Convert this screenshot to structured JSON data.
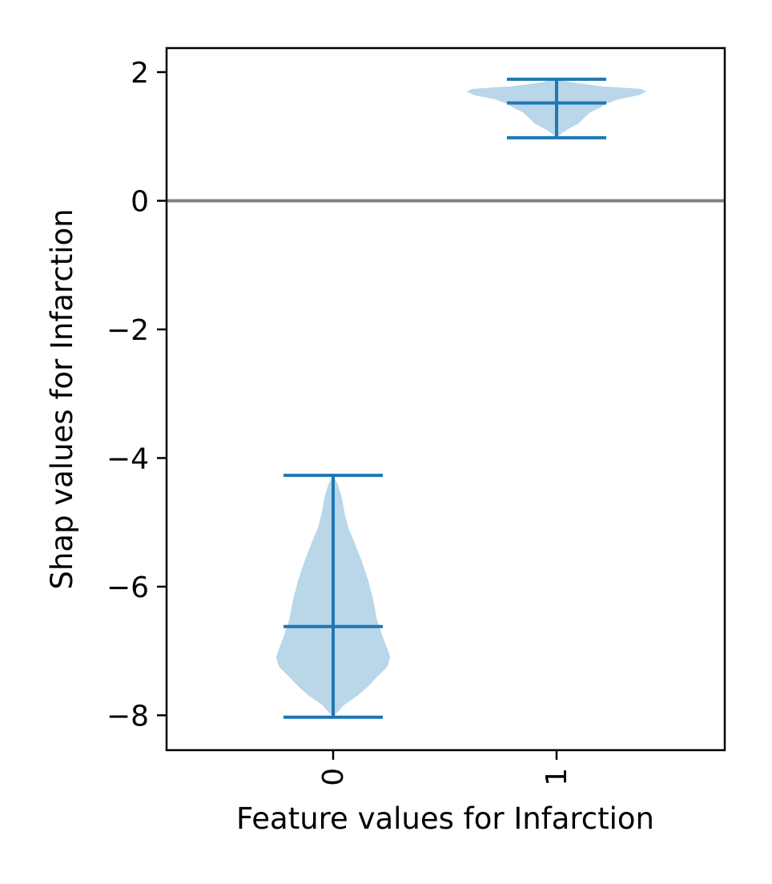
{
  "chart_data": {
    "type": "violin",
    "xlabel": "Feature values for Infarction",
    "ylabel": "Shap values for Infarction",
    "categories": [
      "0",
      "1"
    ],
    "ylim": [
      -8.5,
      2.4
    ],
    "yticks": [
      2,
      0,
      -2,
      -4,
      -6,
      -8
    ],
    "ytick_labels": [
      "2",
      "0",
      "−2",
      "−4",
      "−6",
      "−8"
    ],
    "reference_line": 0,
    "violins": [
      {
        "category": "0",
        "min": -8.03,
        "median": -6.62,
        "max": -4.27,
        "density": [
          [
            -4.27,
            0.0
          ],
          [
            -4.4,
            0.045
          ],
          [
            -4.6,
            0.085
          ],
          [
            -4.9,
            0.12
          ],
          [
            -5.1,
            0.155
          ],
          [
            -5.3,
            0.21
          ],
          [
            -5.6,
            0.285
          ],
          [
            -5.9,
            0.35
          ],
          [
            -6.2,
            0.4
          ],
          [
            -6.5,
            0.435
          ],
          [
            -6.8,
            0.5
          ],
          [
            -7.0,
            0.55
          ],
          [
            -7.1,
            0.57
          ],
          [
            -7.25,
            0.54
          ],
          [
            -7.4,
            0.44
          ],
          [
            -7.55,
            0.35
          ],
          [
            -7.7,
            0.24
          ],
          [
            -7.85,
            0.1
          ],
          [
            -8.03,
            0.0
          ]
        ]
      },
      {
        "category": "1",
        "min": 0.98,
        "median": 1.52,
        "max": 1.89,
        "density": [
          [
            1.89,
            0.0
          ],
          [
            1.84,
            0.15
          ],
          [
            1.78,
            0.45
          ],
          [
            1.74,
            0.84
          ],
          [
            1.7,
            0.9
          ],
          [
            1.64,
            0.82
          ],
          [
            1.58,
            0.62
          ],
          [
            1.5,
            0.48
          ],
          [
            1.44,
            0.43
          ],
          [
            1.38,
            0.34
          ],
          [
            1.28,
            0.27
          ],
          [
            1.2,
            0.22
          ],
          [
            1.12,
            0.12
          ],
          [
            1.05,
            0.05
          ],
          [
            0.98,
            0.0
          ]
        ]
      }
    ],
    "grid": false,
    "colors": {
      "fill": "#bad6e9",
      "lines": "#1f77b4",
      "reference_line": "#808080"
    }
  }
}
